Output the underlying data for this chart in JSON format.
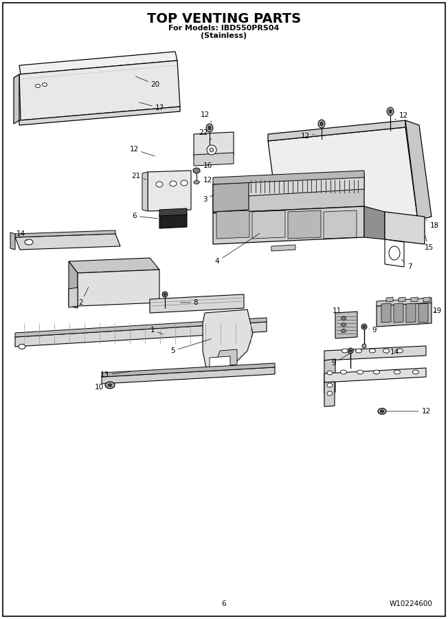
{
  "title": "TOP VENTING PARTS",
  "subtitle1": "For Models: IBD550PRS04",
  "subtitle2": "(Stainless)",
  "page_number": "6",
  "doc_number": "W10224600",
  "bg_color": "#ffffff",
  "fig_width": 6.52,
  "fig_height": 9.0,
  "title_fontsize": 14,
  "subtitle_fontsize": 8,
  "label_fontsize": 7.5,
  "footer_fontsize": 7.5
}
